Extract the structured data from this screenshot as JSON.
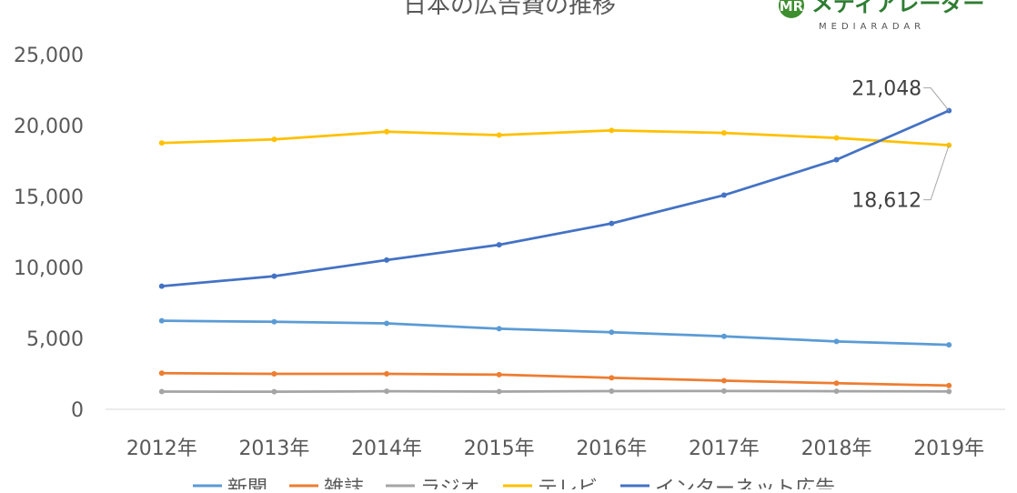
{
  "logo": {
    "text": "メディアレーダー",
    "subtext": "MEDIARADAR",
    "mark": "MR"
  },
  "chart_data": {
    "type": "line",
    "title": "日本の広告費の推移",
    "categories": [
      "2012年",
      "2013年",
      "2014年",
      "2015年",
      "2016年",
      "2017年",
      "2018年",
      "2019年"
    ],
    "ylim": [
      0,
      25000
    ],
    "yticks": [
      0,
      5000,
      10000,
      15000,
      20000,
      25000
    ],
    "ytick_labels": [
      "0",
      "5,000",
      "10,000",
      "15,000",
      "20,000",
      "25,000"
    ],
    "grid": false,
    "legend_position": "bottom",
    "series": [
      {
        "name": "新聞",
        "color": "#5B9BD5",
        "values": [
          6242,
          6170,
          6057,
          5679,
          5431,
          5147,
          4784,
          4547
        ]
      },
      {
        "name": "雑誌",
        "color": "#ED7D31",
        "values": [
          2551,
          2499,
          2500,
          2443,
          2223,
          2023,
          1841,
          1675
        ]
      },
      {
        "name": "ラジオ",
        "color": "#A5A5A5",
        "values": [
          1246,
          1243,
          1272,
          1254,
          1285,
          1290,
          1278,
          1260
        ]
      },
      {
        "name": "テレビ",
        "color": "#FFC000",
        "values": [
          18770,
          19023,
          19564,
          19323,
          19657,
          19478,
          19123,
          18612
        ]
      },
      {
        "name": "インターネット広告",
        "color": "#4472C4",
        "values": [
          8680,
          9381,
          10519,
          11594,
          13100,
          15094,
          17589,
          21048
        ]
      }
    ],
    "annotations": [
      {
        "series": "インターネット広告",
        "category": "2019年",
        "text": "21,048"
      },
      {
        "series": "テレビ",
        "category": "2019年",
        "text": "18,612"
      }
    ]
  }
}
